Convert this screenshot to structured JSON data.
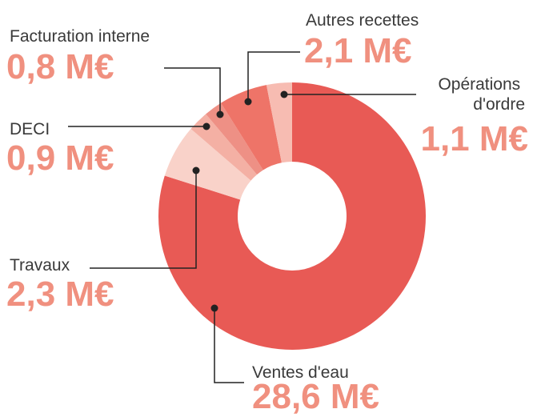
{
  "chart_data": {
    "type": "donut",
    "categories": [
      "Ventes d'eau",
      "Travaux",
      "DECI",
      "Facturation interne",
      "Autres recettes",
      "Opérations d'ordre"
    ],
    "values": [
      28.6,
      2.3,
      0.9,
      0.8,
      2.1,
      1.1
    ],
    "value_labels": [
      "28,6 M€",
      "2,3 M€",
      "0,9 M€",
      "0,8 M€",
      "2,1 M€",
      "1,1 M€"
    ],
    "colors": [
      "#e85a55",
      "#f9d2c9",
      "#f4b0a4",
      "#ee9085",
      "#ee7468",
      "#f7bcb2"
    ]
  }
}
